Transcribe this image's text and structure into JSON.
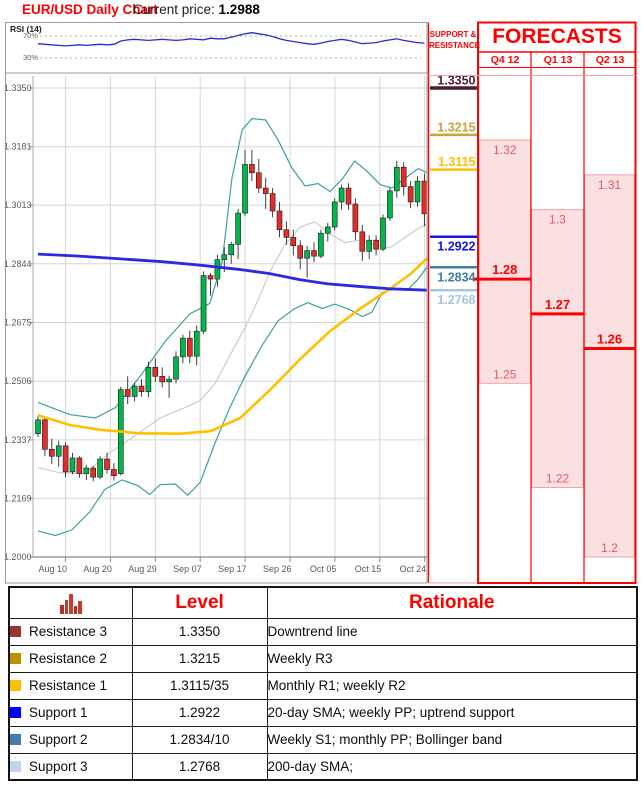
{
  "header": {
    "title": "EUR/USD Daily Chart",
    "current_price_label": "Current price:",
    "current_price_value": "1.2988"
  },
  "rsi_panel": {
    "label": "RSI (14)",
    "upper_label": "70%",
    "lower_label": "30%"
  },
  "sr_panel": {
    "title_line1": "SUPPORT &",
    "title_line2": "RESISTANCE",
    "levels": [
      {
        "label": "1.3350",
        "price": 1.335,
        "color": "#4E1B33",
        "side": "above",
        "width": 3.5
      },
      {
        "label": "1.3215",
        "price": 1.3215,
        "color": "#C9A43C",
        "side": "above",
        "width": 2.5
      },
      {
        "label": "1.3115",
        "price": 1.3115,
        "color": "#FFC000",
        "side": "above",
        "width": 2.5
      },
      {
        "label": "1.2922",
        "price": 1.2922,
        "color": "#1414E6",
        "side": "below",
        "width": 2.5
      },
      {
        "label": "1.2834",
        "price": 1.2834,
        "color": "#3D7EA6",
        "side": "below",
        "width": 2.5
      },
      {
        "label": "1.2768",
        "price": 1.2768,
        "color": "#A5C8DC",
        "side": "below",
        "width": 2.5
      }
    ]
  },
  "forecasts": {
    "title": "FORECASTS",
    "columns": [
      {
        "label": "Q4 12",
        "high": 1.32,
        "high_label": "1.32",
        "target": 1.28,
        "target_label": "1.28",
        "low": 1.25,
        "low_label": "1.25"
      },
      {
        "label": "Q1 13",
        "high": 1.3,
        "high_label": "1.3",
        "target": 1.27,
        "target_label": "1.27",
        "low": 1.22,
        "low_label": "1.22"
      },
      {
        "label": "Q2 13",
        "high": 1.31,
        "high_label": "1.31",
        "target": 1.26,
        "target_label": "1.26",
        "low": 1.2,
        "low_label": "1.2"
      }
    ]
  },
  "chart_data": {
    "type": "candlestick",
    "title": "EUR/USD Daily Chart",
    "x_labels": [
      "Aug 10",
      "Aug 20",
      "Aug 29",
      "Sep 07",
      "Sep 17",
      "Sep 26",
      "Oct 05",
      "Oct 15",
      "Oct 24"
    ],
    "y_ticks": [
      "1.3350",
      "1.3181",
      "1.3013",
      "1.2844",
      "1.2675",
      "1.2506",
      "1.2337",
      "1.2169",
      "1.2000"
    ],
    "ylim": [
      1.2,
      1.335
    ],
    "candles": [
      [
        1.2355,
        1.2405,
        1.2345,
        1.2395
      ],
      [
        1.2395,
        1.24,
        1.229,
        1.231
      ],
      [
        1.231,
        1.234,
        1.2268,
        1.229
      ],
      [
        1.229,
        1.2335,
        1.226,
        1.232
      ],
      [
        1.232,
        1.233,
        1.223,
        1.2245
      ],
      [
        1.2245,
        1.23,
        1.2238,
        1.2285
      ],
      [
        1.2285,
        1.229,
        1.2228,
        1.224
      ],
      [
        1.224,
        1.2265,
        1.2222,
        1.2256
      ],
      [
        1.2256,
        1.2262,
        1.2218,
        1.223
      ],
      [
        1.223,
        1.229,
        1.2224,
        1.2282
      ],
      [
        1.2282,
        1.23,
        1.224,
        1.2252
      ],
      [
        1.2252,
        1.227,
        1.222,
        1.2234
      ],
      [
        1.224,
        1.249,
        1.2235,
        1.2482
      ],
      [
        1.2482,
        1.252,
        1.244,
        1.2462
      ],
      [
        1.2462,
        1.2502,
        1.2448,
        1.2492
      ],
      [
        1.2492,
        1.2512,
        1.2462,
        1.2476
      ],
      [
        1.2476,
        1.2562,
        1.246,
        1.2546
      ],
      [
        1.2546,
        1.2572,
        1.2504,
        1.252
      ],
      [
        1.252,
        1.2546,
        1.2488,
        1.2504
      ],
      [
        1.2504,
        1.2522,
        1.2458,
        1.2512
      ],
      [
        1.2512,
        1.2592,
        1.25,
        1.2576
      ],
      [
        1.2576,
        1.264,
        1.2558,
        1.263
      ],
      [
        1.263,
        1.2652,
        1.2558,
        1.2578
      ],
      [
        1.2578,
        1.2666,
        1.2552,
        1.265
      ],
      [
        1.265,
        1.2822,
        1.2642,
        1.281
      ],
      [
        1.281,
        1.2818,
        1.2752,
        1.28
      ],
      [
        1.28,
        1.287,
        1.2778,
        1.2856
      ],
      [
        1.2856,
        1.2892,
        1.282,
        1.287
      ],
      [
        1.287,
        1.2908,
        1.2844,
        1.29
      ],
      [
        1.29,
        1.3002,
        1.2858,
        1.299
      ],
      [
        1.299,
        1.3172,
        1.2982,
        1.313
      ],
      [
        1.313,
        1.3172,
        1.3082,
        1.3106
      ],
      [
        1.3106,
        1.3146,
        1.3048,
        1.3062
      ],
      [
        1.3062,
        1.3092,
        1.3002,
        1.3046
      ],
      [
        1.3046,
        1.3062,
        1.2978,
        1.2996
      ],
      [
        1.2996,
        1.3022,
        1.292,
        1.2942
      ],
      [
        1.2942,
        1.2966,
        1.2898,
        1.292
      ],
      [
        1.292,
        1.2942,
        1.2868,
        1.2896
      ],
      [
        1.2896,
        1.2912,
        1.2828,
        1.286
      ],
      [
        1.286,
        1.2896,
        1.2804,
        1.2882
      ],
      [
        1.2882,
        1.2906,
        1.2848,
        1.2866
      ],
      [
        1.2866,
        1.2942,
        1.286,
        1.2932
      ],
      [
        1.2932,
        1.2962,
        1.2908,
        1.295
      ],
      [
        1.295,
        1.3032,
        1.294,
        1.3022
      ],
      [
        1.3022,
        1.3072,
        1.3,
        1.3062
      ],
      [
        1.3062,
        1.3076,
        1.3,
        1.3016
      ],
      [
        1.3016,
        1.3032,
        1.2912,
        1.2936
      ],
      [
        1.2936,
        1.2956,
        1.2852,
        1.288
      ],
      [
        1.288,
        1.2926,
        1.2858,
        1.2912
      ],
      [
        1.2912,
        1.2926,
        1.2868,
        1.2886
      ],
      [
        1.2886,
        1.2986,
        1.288,
        1.2976
      ],
      [
        1.2976,
        1.3062,
        1.2968,
        1.3054
      ],
      [
        1.3054,
        1.314,
        1.3034,
        1.3122
      ],
      [
        1.3122,
        1.3136,
        1.304,
        1.3066
      ],
      [
        1.3066,
        1.3082,
        1.3004,
        1.3022
      ],
      [
        1.3022,
        1.3096,
        1.3008,
        1.3082
      ],
      [
        1.3082,
        1.3104,
        1.2952,
        1.2988
      ]
    ],
    "overlays": {
      "bollinger_upper": {
        "name": "Bollinger upper band",
        "color": "#3FA0A0",
        "points": [
          [
            0,
            1.2445
          ],
          [
            4.6,
            1.241
          ],
          [
            8.3,
            1.24
          ],
          [
            11.2,
            1.243
          ],
          [
            14.8,
            1.252
          ],
          [
            18.4,
            1.262
          ],
          [
            22,
            1.27
          ],
          [
            24.9,
            1.273
          ],
          [
            26.7,
            1.285
          ],
          [
            28.1,
            1.309
          ],
          [
            29.6,
            1.323
          ],
          [
            31,
            1.3262
          ],
          [
            33,
            1.3258
          ],
          [
            34.8,
            1.32
          ],
          [
            36.8,
            1.312
          ],
          [
            38.7,
            1.3068
          ],
          [
            40.6,
            1.3075
          ],
          [
            42.3,
            1.3052
          ],
          [
            44.1,
            1.3088
          ],
          [
            45.9,
            1.314
          ],
          [
            47.8,
            1.3108
          ],
          [
            49.6,
            1.3072
          ],
          [
            51.3,
            1.3062
          ],
          [
            53.2,
            1.309
          ],
          [
            55.1,
            1.3118
          ],
          [
            56.4,
            1.3106
          ]
        ]
      },
      "bollinger_lower": {
        "name": "Bollinger lower band",
        "color": "#3FA0A0",
        "points": [
          [
            0,
            1.2075
          ],
          [
            2.5,
            1.2062
          ],
          [
            4.9,
            1.2078
          ],
          [
            7.5,
            1.213
          ],
          [
            9.7,
            1.2195
          ],
          [
            12.2,
            1.2222
          ],
          [
            14.5,
            1.2205
          ],
          [
            16.2,
            1.218
          ],
          [
            17.7,
            1.2208
          ],
          [
            19.9,
            1.221
          ],
          [
            21.7,
            1.2178
          ],
          [
            23.5,
            1.2215
          ],
          [
            25.7,
            1.233
          ],
          [
            27.8,
            1.243
          ],
          [
            30,
            1.252
          ],
          [
            32.5,
            1.261
          ],
          [
            34.8,
            1.268
          ],
          [
            37.2,
            1.2715
          ],
          [
            39.1,
            1.2732
          ],
          [
            41.2,
            1.2715
          ],
          [
            43,
            1.2728
          ],
          [
            45.2,
            1.2712
          ],
          [
            47,
            1.2692
          ],
          [
            48.4,
            1.2705
          ],
          [
            49.9,
            1.2762
          ],
          [
            51.7,
            1.2772
          ],
          [
            53.6,
            1.277
          ],
          [
            55.1,
            1.28
          ],
          [
            56.4,
            1.2836
          ]
        ]
      },
      "sma_20": {
        "name": "20-day SMA",
        "color": "#CCCCCC",
        "points": [
          [
            0,
            1.2258
          ],
          [
            3.2,
            1.2242
          ],
          [
            6.8,
            1.224
          ],
          [
            10.4,
            1.23
          ],
          [
            14.1,
            1.235
          ],
          [
            17.7,
            1.24
          ],
          [
            21.3,
            1.243
          ],
          [
            23.5,
            1.245
          ],
          [
            25.7,
            1.25
          ],
          [
            27.8,
            1.258
          ],
          [
            30,
            1.266
          ],
          [
            31.9,
            1.274
          ],
          [
            33.6,
            1.282
          ],
          [
            35.8,
            1.29
          ],
          [
            38,
            1.295
          ],
          [
            40.1,
            1.2965
          ],
          [
            42.3,
            1.293
          ],
          [
            44.5,
            1.2905
          ],
          [
            46.7,
            1.2912
          ],
          [
            48.8,
            1.2898
          ],
          [
            51,
            1.289
          ],
          [
            53.2,
            1.292
          ],
          [
            55.4,
            1.295
          ],
          [
            56.4,
            1.2958
          ]
        ]
      },
      "sma_100": {
        "name": "100-day SMA",
        "color": "#FFC000",
        "points": [
          [
            0,
            1.2408
          ],
          [
            4.6,
            1.238
          ],
          [
            9,
            1.2366
          ],
          [
            14.8,
            1.2356
          ],
          [
            20.6,
            1.2355
          ],
          [
            25,
            1.2362
          ],
          [
            29.3,
            1.24
          ],
          [
            33.6,
            1.248
          ],
          [
            38,
            1.257
          ],
          [
            42.3,
            1.265
          ],
          [
            46.7,
            1.2715
          ],
          [
            51,
            1.2772
          ],
          [
            54,
            1.2815
          ],
          [
            56.4,
            1.286
          ]
        ]
      },
      "sma_200": {
        "name": "200-day SMA",
        "color": "#2A2AE0",
        "points": [
          [
            0,
            1.2872
          ],
          [
            6,
            1.2866
          ],
          [
            12,
            1.2858
          ],
          [
            18,
            1.285
          ],
          [
            23.5,
            1.284
          ],
          [
            29,
            1.2828
          ],
          [
            33.5,
            1.2816
          ],
          [
            38,
            1.2798
          ],
          [
            42,
            1.2786
          ],
          [
            47,
            1.2778
          ],
          [
            51,
            1.2772
          ],
          [
            56.4,
            1.2768
          ]
        ]
      }
    },
    "rsi": {
      "period": "RSI (14)",
      "upper": 70,
      "lower": 30,
      "values": [
        56,
        55,
        54,
        53,
        52,
        53,
        54,
        53,
        54,
        55,
        54,
        55,
        61,
        63,
        64,
        63,
        62,
        63,
        64,
        63,
        62,
        63,
        65,
        64,
        63,
        66,
        65,
        65,
        68,
        71,
        74,
        76,
        74,
        72,
        69,
        65,
        62,
        60,
        58,
        56,
        55,
        57,
        60,
        62,
        64,
        62,
        59,
        56,
        57,
        58,
        61,
        63,
        65,
        62,
        60,
        58,
        57
      ]
    }
  },
  "table": {
    "headers": {
      "icon": "bar-chart-icon",
      "level": "Level",
      "rationale": "Rationale"
    },
    "rows": [
      {
        "color": "#963634",
        "name": "Resistance 3",
        "level": "1.3350",
        "rationale": "Downtrend line"
      },
      {
        "color": "#BD8E00",
        "name": "Resistance 2",
        "level": "1.3215",
        "rationale": "Weekly R3"
      },
      {
        "color": "#FFC000",
        "name": "Resistance 1",
        "level": "1.3115/35",
        "rationale": "Monthly R1; weekly R2"
      },
      {
        "color": "#0000FF",
        "name": "Support 1",
        "level": "1.2922",
        "rationale": "20-day SMA; weekly PP; uptrend support"
      },
      {
        "color": "#4779B0",
        "name": "Support 2",
        "level": "1.2834/10",
        "rationale": "Weekly S1; monthly PP; Bollinger band"
      },
      {
        "color": "#C3D5EA",
        "name": "Support 3",
        "level": "1.2768",
        "rationale": "200-day SMA;"
      }
    ]
  },
  "colors": {
    "title_red": "#FF0000",
    "candle_up": "#00B84A",
    "candle_down": "#E32D2D",
    "wick": "#2B2B2B",
    "forecast_fill": "#FBE0E2",
    "forecast_border": "#F2A2A8",
    "forecast_edge_text": "#E4595C",
    "grid": "#D6D6D6",
    "axis": "#8C8C8C",
    "rsi_line": "#2A2AD4"
  }
}
